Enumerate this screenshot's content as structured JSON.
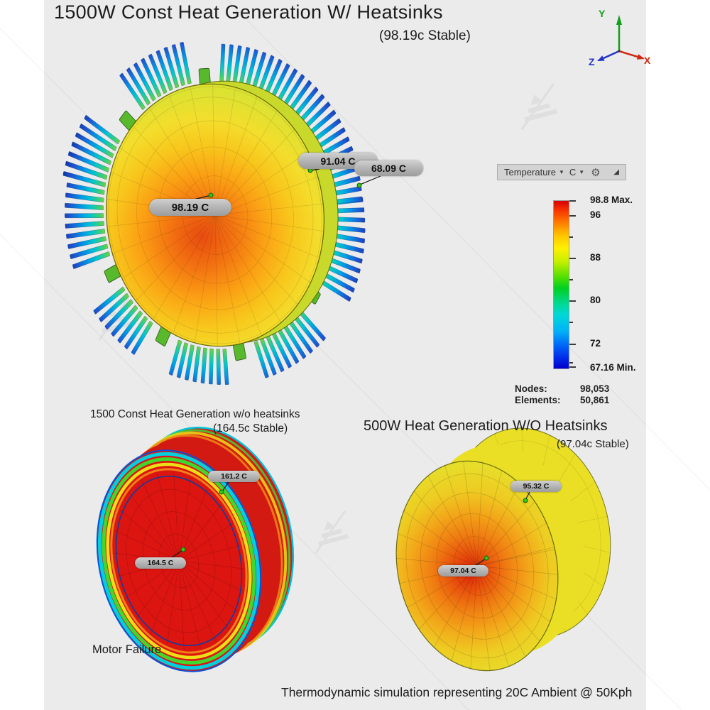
{
  "window": {
    "background": "#ffffff",
    "panel_background": "#ebebeb"
  },
  "header": {
    "title": "1500W Const Heat Generation W/ Heatsinks",
    "subtitle": "(98.19c Stable)"
  },
  "axis_triad": {
    "x_label": "X",
    "y_label": "Y",
    "z_label": "Z",
    "x_color": "#d22814",
    "y_color": "#13a01a",
    "z_color": "#2433c8"
  },
  "toolbar": {
    "field": "Temperature",
    "unit": "C"
  },
  "legend": {
    "max_label": "98.8 Max.",
    "tick_labels": [
      "96",
      "88",
      "80",
      "72"
    ],
    "min_label": "67.16 Min.",
    "max_value": 98.8,
    "min_value": 67.16,
    "unit": "C",
    "colors_top_to_bottom": [
      "#d80000",
      "#ff7c00",
      "#fff000",
      "#00d020",
      "#00d8d8",
      "#0028e8",
      "#0000c8"
    ]
  },
  "stats": {
    "nodes_label": "Nodes:",
    "nodes_value": "98,053",
    "elements_label": "Elements:",
    "elements_value": "50,861"
  },
  "models": {
    "with_heatsinks": {
      "probes": [
        {
          "label": "91.04 C"
        },
        {
          "label": "68.09 C"
        },
        {
          "label": "98.19 C"
        }
      ]
    },
    "no_heatsinks_1500w": {
      "title": "1500 Const Heat Generation w/o heatsinks",
      "subtitle": "(164.5c Stable)",
      "caption": "Motor Failure",
      "probes": [
        {
          "label": "161.2 C"
        },
        {
          "label": "164.5 C"
        }
      ]
    },
    "no_heatsinks_500w": {
      "title": "500W Heat Generation W/O Heatsinks",
      "subtitle": "(97.04c Stable)",
      "probes": [
        {
          "label": "95.32 C"
        },
        {
          "label": "97.04 C"
        }
      ]
    }
  },
  "footer": {
    "caption": "Thermodynamic simulation representing 20C Ambient @ 50Kph"
  }
}
